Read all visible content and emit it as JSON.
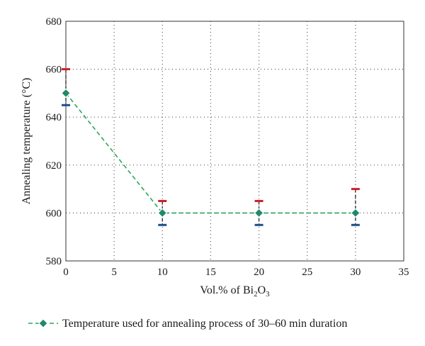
{
  "chart_data": {
    "type": "line",
    "xlabel": "Vol.% of Bi₂O₃",
    "ylabel": "Annealing temperature (°C)",
    "xlim": [
      0,
      35
    ],
    "ylim": [
      580,
      680
    ],
    "xticks": [
      0,
      5,
      10,
      15,
      20,
      25,
      30,
      35
    ],
    "yticks": [
      580,
      600,
      620,
      640,
      660,
      680
    ],
    "grid": true,
    "legend_position": "bottom",
    "series": [
      {
        "name": "Temperature used for annealing process of 30–60 min duration",
        "x": [
          0,
          10,
          20,
          30
        ],
        "y": [
          650,
          600,
          600,
          600
        ],
        "upper": [
          660,
          605,
          605,
          610
        ],
        "lower": [
          645,
          595,
          595,
          595
        ]
      }
    ],
    "colors": {
      "line": "#2aa65a",
      "marker": "#1f8a6a",
      "upper_bar": "#d0202a",
      "lower_bar": "#1f4e8c",
      "grid": "#555555"
    }
  }
}
